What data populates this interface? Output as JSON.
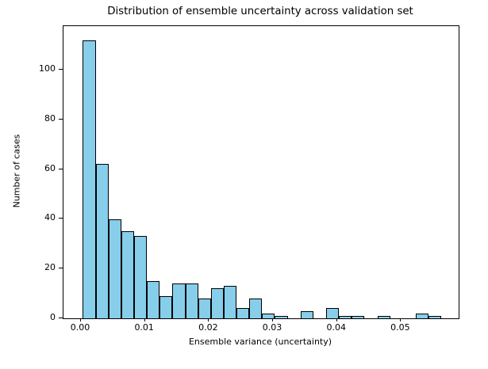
{
  "figure": {
    "background": "#ffffff"
  },
  "chart_data": {
    "type": "bar",
    "subtype": "histogram",
    "title": "Distribution of ensemble uncertainty across validation set",
    "xlabel": "Ensemble variance (uncertainty)",
    "ylabel": "Number of cases",
    "bar_color": "#87CEEB",
    "bar_edge_color": "#000000",
    "bin_start": 0.0003,
    "bin_width": 0.002,
    "counts": [
      112,
      62,
      40,
      35,
      33,
      15,
      9,
      14,
      14,
      8,
      12,
      13,
      4,
      8,
      2,
      1,
      0,
      3,
      0,
      4,
      1,
      1,
      0,
      1,
      0,
      0,
      2,
      1
    ],
    "x_ticks": [
      0.0,
      0.01,
      0.02,
      0.03,
      0.04,
      0.05
    ],
    "x_tick_labels": [
      "0.00",
      "0.01",
      "0.02",
      "0.03",
      "0.04",
      "0.05"
    ],
    "y_ticks": [
      0,
      20,
      40,
      60,
      80,
      100
    ],
    "y_tick_labels": [
      "0",
      "20",
      "40",
      "60",
      "80",
      "100"
    ],
    "xlim": [
      -0.00273,
      0.059
    ],
    "ylim": [
      0,
      117.6
    ],
    "grid": false,
    "legend": "none"
  }
}
